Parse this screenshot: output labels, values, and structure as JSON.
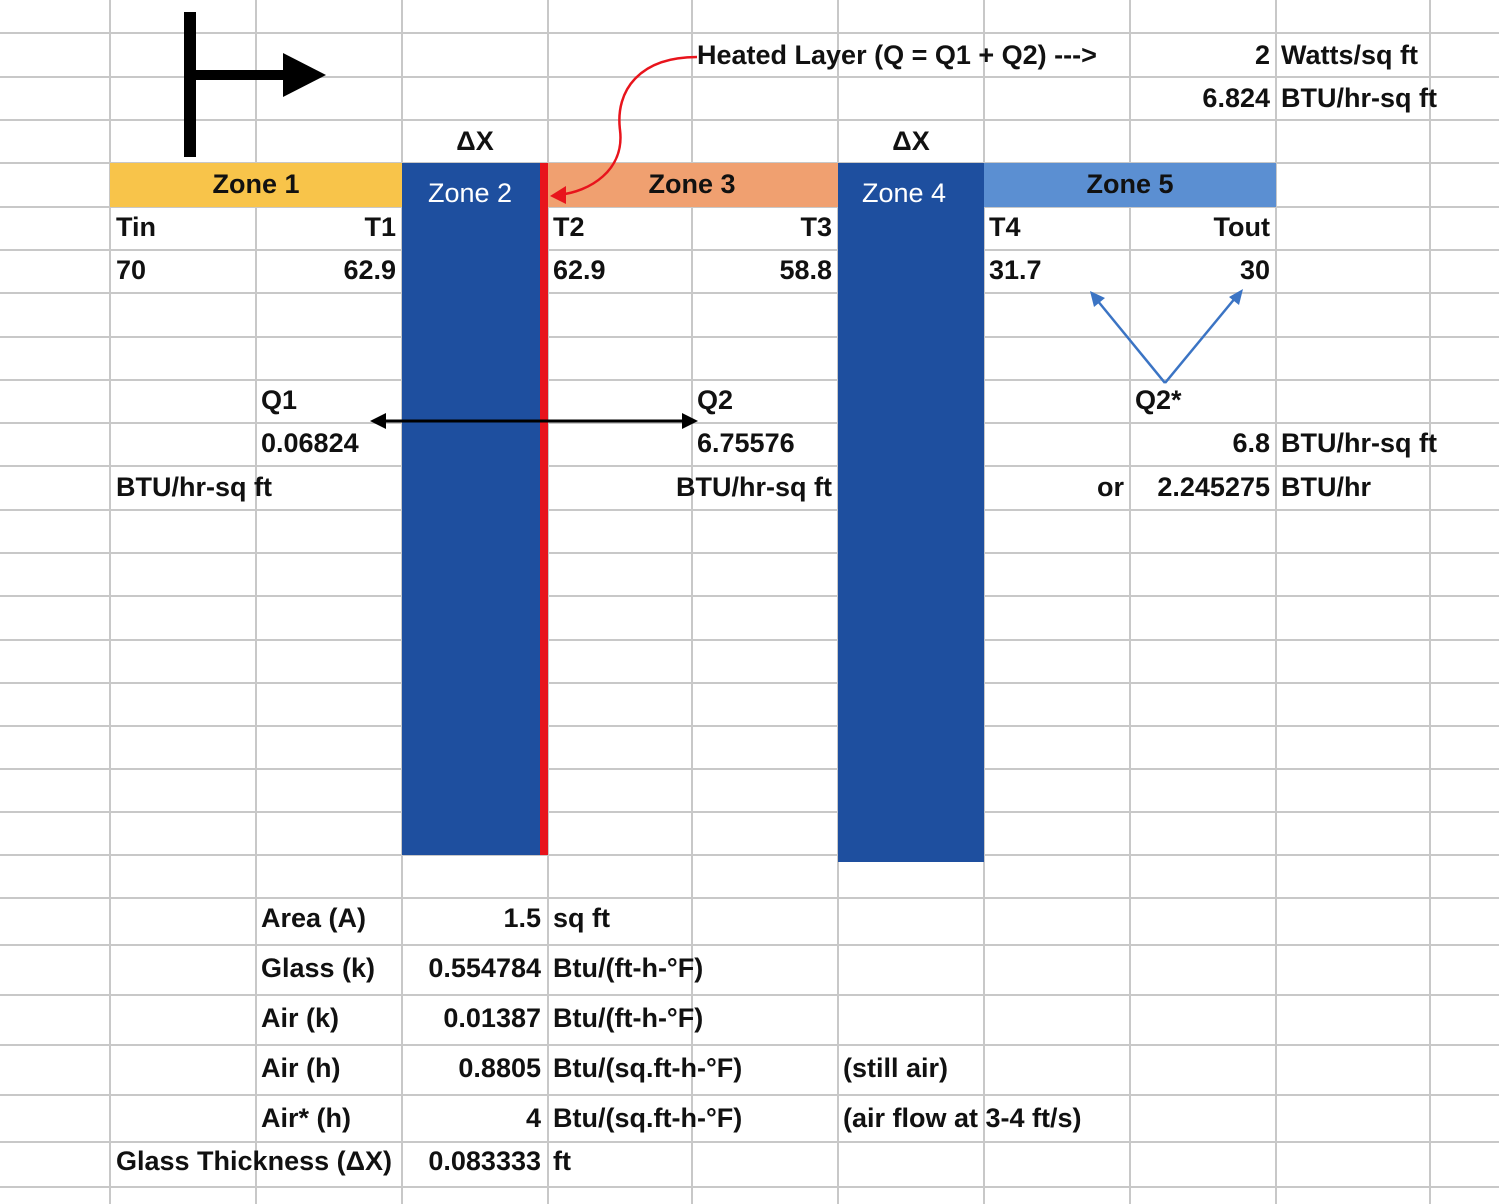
{
  "heated_layer": "Heated Layer (Q = Q1 + Q2) --->",
  "delta_x": [
    "ΔX",
    "ΔX"
  ],
  "heat_flux": [
    {
      "value": "2",
      "unit": "Watts/sq ft"
    },
    {
      "value": "6.824",
      "unit": "BTU/hr-sq ft"
    }
  ],
  "zones": [
    "Zone 1",
    "Zone 2",
    "Zone 3",
    "Zone 4",
    "Zone 5"
  ],
  "temperatures": [
    {
      "label": "Tin",
      "value": "70"
    },
    {
      "label": "T1",
      "value": "62.9"
    },
    {
      "label": "T2",
      "value": "62.9"
    },
    {
      "label": "T3",
      "value": "58.8"
    },
    {
      "label": "T4",
      "value": "31.7"
    },
    {
      "label": "Tout",
      "value": "30"
    }
  ],
  "q1": {
    "label": "Q1",
    "value": "0.06824",
    "unit": "BTU/hr-sq ft"
  },
  "q2": {
    "label": "Q2",
    "value": "6.75576",
    "unit": "BTU/hr-sq ft"
  },
  "q2_star": {
    "label": "Q2*",
    "value": "6.8",
    "unit": "BTU/hr-sq ft",
    "or": "or",
    "total": "2.245275",
    "total_unit": "BTU/hr"
  },
  "parameters": [
    {
      "label": "Area (A)",
      "value": "1.5",
      "unit": "sq ft"
    },
    {
      "label": "Glass (k)",
      "value": "0.554784",
      "unit": "Btu/(ft-h-°F)"
    },
    {
      "label": "Air (k)",
      "value": "0.01387",
      "unit": "Btu/(ft-h-°F)"
    },
    {
      "label": "Air (h)",
      "value": "0.8805",
      "unit": "Btu/(sq.ft-h-°F)",
      "note": "(still air)"
    },
    {
      "label": "Air* (h)",
      "value": "4",
      "unit": "Btu/(sq.ft-h-°F)",
      "note": "(air flow at 3-4 ft/s)"
    },
    {
      "label": "Glass Thickness (ΔX)",
      "value": "0.083333",
      "unit": "ft"
    }
  ]
}
